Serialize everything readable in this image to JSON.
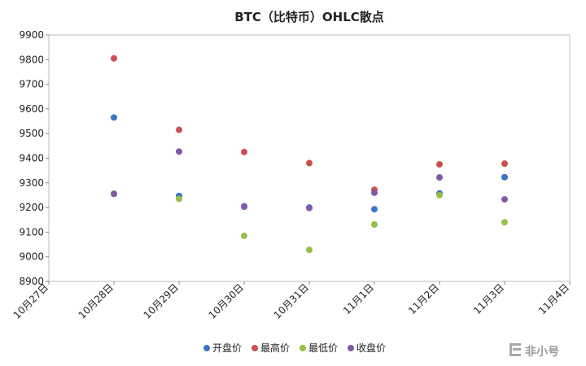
{
  "chart_data": {
    "type": "scatter",
    "title": "BTC（比特币）OHLC散点",
    "xlabel": "",
    "ylabel": "",
    "x_ticks": [
      "10月27日",
      "10月28日",
      "10月29日",
      "10月30日",
      "10月31日",
      "11月1日",
      "11月2日",
      "11月3日",
      "11月4日"
    ],
    "categories": [
      "10月28日",
      "10月29日",
      "10月30日",
      "10月31日",
      "11月1日",
      "11月2日",
      "11月3日"
    ],
    "ylim": [
      8900,
      9900
    ],
    "y_ticks": [
      8900,
      9000,
      9100,
      9200,
      9300,
      9400,
      9500,
      9600,
      9700,
      9800,
      9900
    ],
    "grid": false,
    "legend_position": "bottom",
    "series": [
      {
        "name": "开盘价",
        "color": "#3a75c4",
        "values": [
          9565,
          9247,
          9205,
          9200,
          9193,
          9257,
          9323
        ]
      },
      {
        "name": "最高价",
        "color": "#c9504f",
        "values": [
          9805,
          9515,
          9425,
          9380,
          9272,
          9375,
          9378
        ]
      },
      {
        "name": "最低价",
        "color": "#94c047",
        "values": [
          9256,
          9235,
          9085,
          9028,
          9131,
          9250,
          9140
        ]
      },
      {
        "name": "收盘价",
        "color": "#8358a8",
        "values": [
          9255,
          9427,
          9203,
          9198,
          9260,
          9322,
          9233
        ]
      }
    ]
  },
  "watermark": {
    "text": "非小号",
    "icon": "feixiaohao-logo-icon"
  }
}
